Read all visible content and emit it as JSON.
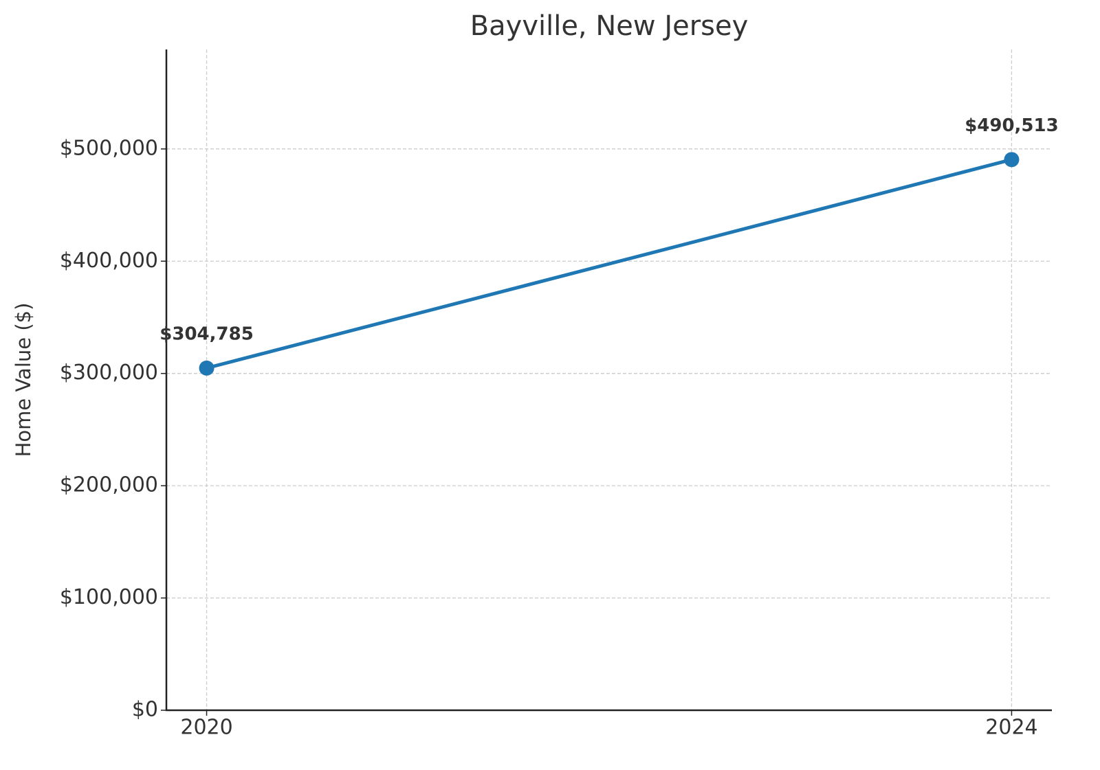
{
  "chart_data": {
    "type": "line",
    "title": "Bayville, New Jersey",
    "ylabel": "Home Value ($)",
    "x": [
      2020,
      2024
    ],
    "values": [
      304785,
      490513
    ],
    "value_labels": [
      "$304,785",
      "$490,513"
    ],
    "color": "#1f77b4",
    "xlim": [
      2019.8,
      2024.2
    ],
    "xticks": [
      2020,
      2024
    ],
    "ylim": [
      0,
      588616
    ],
    "yticks": [
      {
        "value": 0,
        "label": "$0"
      },
      {
        "value": 100000,
        "label": "$100,000"
      },
      {
        "value": 200000,
        "label": "$200,000"
      },
      {
        "value": 300000,
        "label": "$300,000"
      },
      {
        "value": 400000,
        "label": "$400,000"
      },
      {
        "value": 500000,
        "label": "$500,000"
      }
    ],
    "grid": true
  }
}
